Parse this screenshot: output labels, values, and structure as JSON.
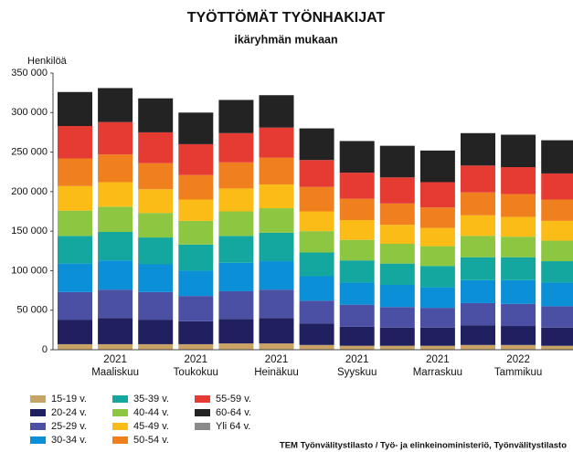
{
  "chart_data": {
    "type": "stacked_bar",
    "title": "TYÖTTÖMÄT TYÖNHAKIJAT",
    "subtitle": "ikäryhmän mukaan",
    "y_label": "Henkilöä",
    "source": "TEM Työnvälitystilasto / Työ- ja elinkeinoministeriö, Työnvälitystilasto",
    "categories": [
      null,
      "2021\nMaaliskuu",
      null,
      "2021\nToukokuu",
      null,
      "2021\nHeinäkuu",
      null,
      "2021\nSyyskuu",
      null,
      "2021\nMarraskuu",
      null,
      "2022\nTammikuu",
      null
    ],
    "ylim": [
      0,
      350000
    ],
    "yticks": [
      0,
      {
        "value": 50000,
        "label": "50 000"
      },
      {
        "value": 100000,
        "label": "100 000"
      },
      {
        "value": 150000,
        "label": "150 000"
      },
      {
        "value": 200000,
        "label": "200 000"
      },
      {
        "value": 250000,
        "label": "250 000"
      },
      {
        "value": 300000,
        "label": "300 000"
      },
      {
        "value": 350000,
        "label": "350 000"
      }
    ],
    "grid": false,
    "series": [
      {
        "name": "15-19 v.",
        "color": "#c9a266",
        "values": [
          7000,
          7000,
          7000,
          7000,
          8000,
          8000,
          6000,
          5000,
          5000,
          5000,
          6000,
          6000,
          5000
        ]
      },
      {
        "name": "20-24 v.",
        "color": "#202060",
        "values": [
          31000,
          33000,
          31000,
          29000,
          31000,
          32000,
          27000,
          24000,
          23000,
          23000,
          25000,
          24000,
          23000
        ]
      },
      {
        "name": "25-29 v.",
        "color": "#4c50a4",
        "values": [
          35000,
          36000,
          35000,
          32000,
          35000,
          36000,
          29000,
          28000,
          26000,
          25000,
          28000,
          28000,
          27000
        ]
      },
      {
        "name": "30-34 v.",
        "color": "#0b8fd7",
        "values": [
          36000,
          37000,
          35000,
          32000,
          36000,
          36000,
          31000,
          28000,
          28000,
          26000,
          29000,
          30000,
          30000
        ]
      },
      {
        "name": "35-39 v.",
        "color": "#14a7a0",
        "values": [
          35000,
          36000,
          34000,
          33000,
          34000,
          36000,
          30000,
          28000,
          27000,
          27000,
          29000,
          29000,
          27000
        ]
      },
      {
        "name": "40-44 v.",
        "color": "#8dc641",
        "values": [
          32000,
          32000,
          31000,
          30000,
          31000,
          31000,
          27000,
          26000,
          25000,
          25000,
          27000,
          26000,
          26000
        ]
      },
      {
        "name": "45-49 v.",
        "color": "#fbbc18",
        "values": [
          31000,
          31000,
          30000,
          27000,
          29000,
          30000,
          25000,
          25000,
          24000,
          23000,
          26000,
          25000,
          25000
        ]
      },
      {
        "name": "50-54 v.",
        "color": "#f0801d",
        "values": [
          35000,
          35000,
          33000,
          31000,
          33000,
          34000,
          31000,
          27000,
          27000,
          26000,
          29000,
          29000,
          27000
        ]
      },
      {
        "name": "55-59 v.",
        "color": "#e63b33",
        "values": [
          41000,
          41000,
          39000,
          39000,
          37000,
          38000,
          34000,
          33000,
          33000,
          32000,
          34000,
          34000,
          33000
        ]
      },
      {
        "name": "60-64 v.",
        "color": "#232323",
        "values": [
          43000,
          43000,
          43000,
          40000,
          42000,
          41000,
          40000,
          40000,
          40000,
          40000,
          41000,
          41000,
          42000
        ]
      },
      {
        "name": "Yli 64 v.",
        "color": "#8a8a8a",
        "values": [
          0,
          0,
          0,
          0,
          0,
          0,
          0,
          0,
          0,
          0,
          0,
          0,
          0
        ]
      }
    ]
  }
}
